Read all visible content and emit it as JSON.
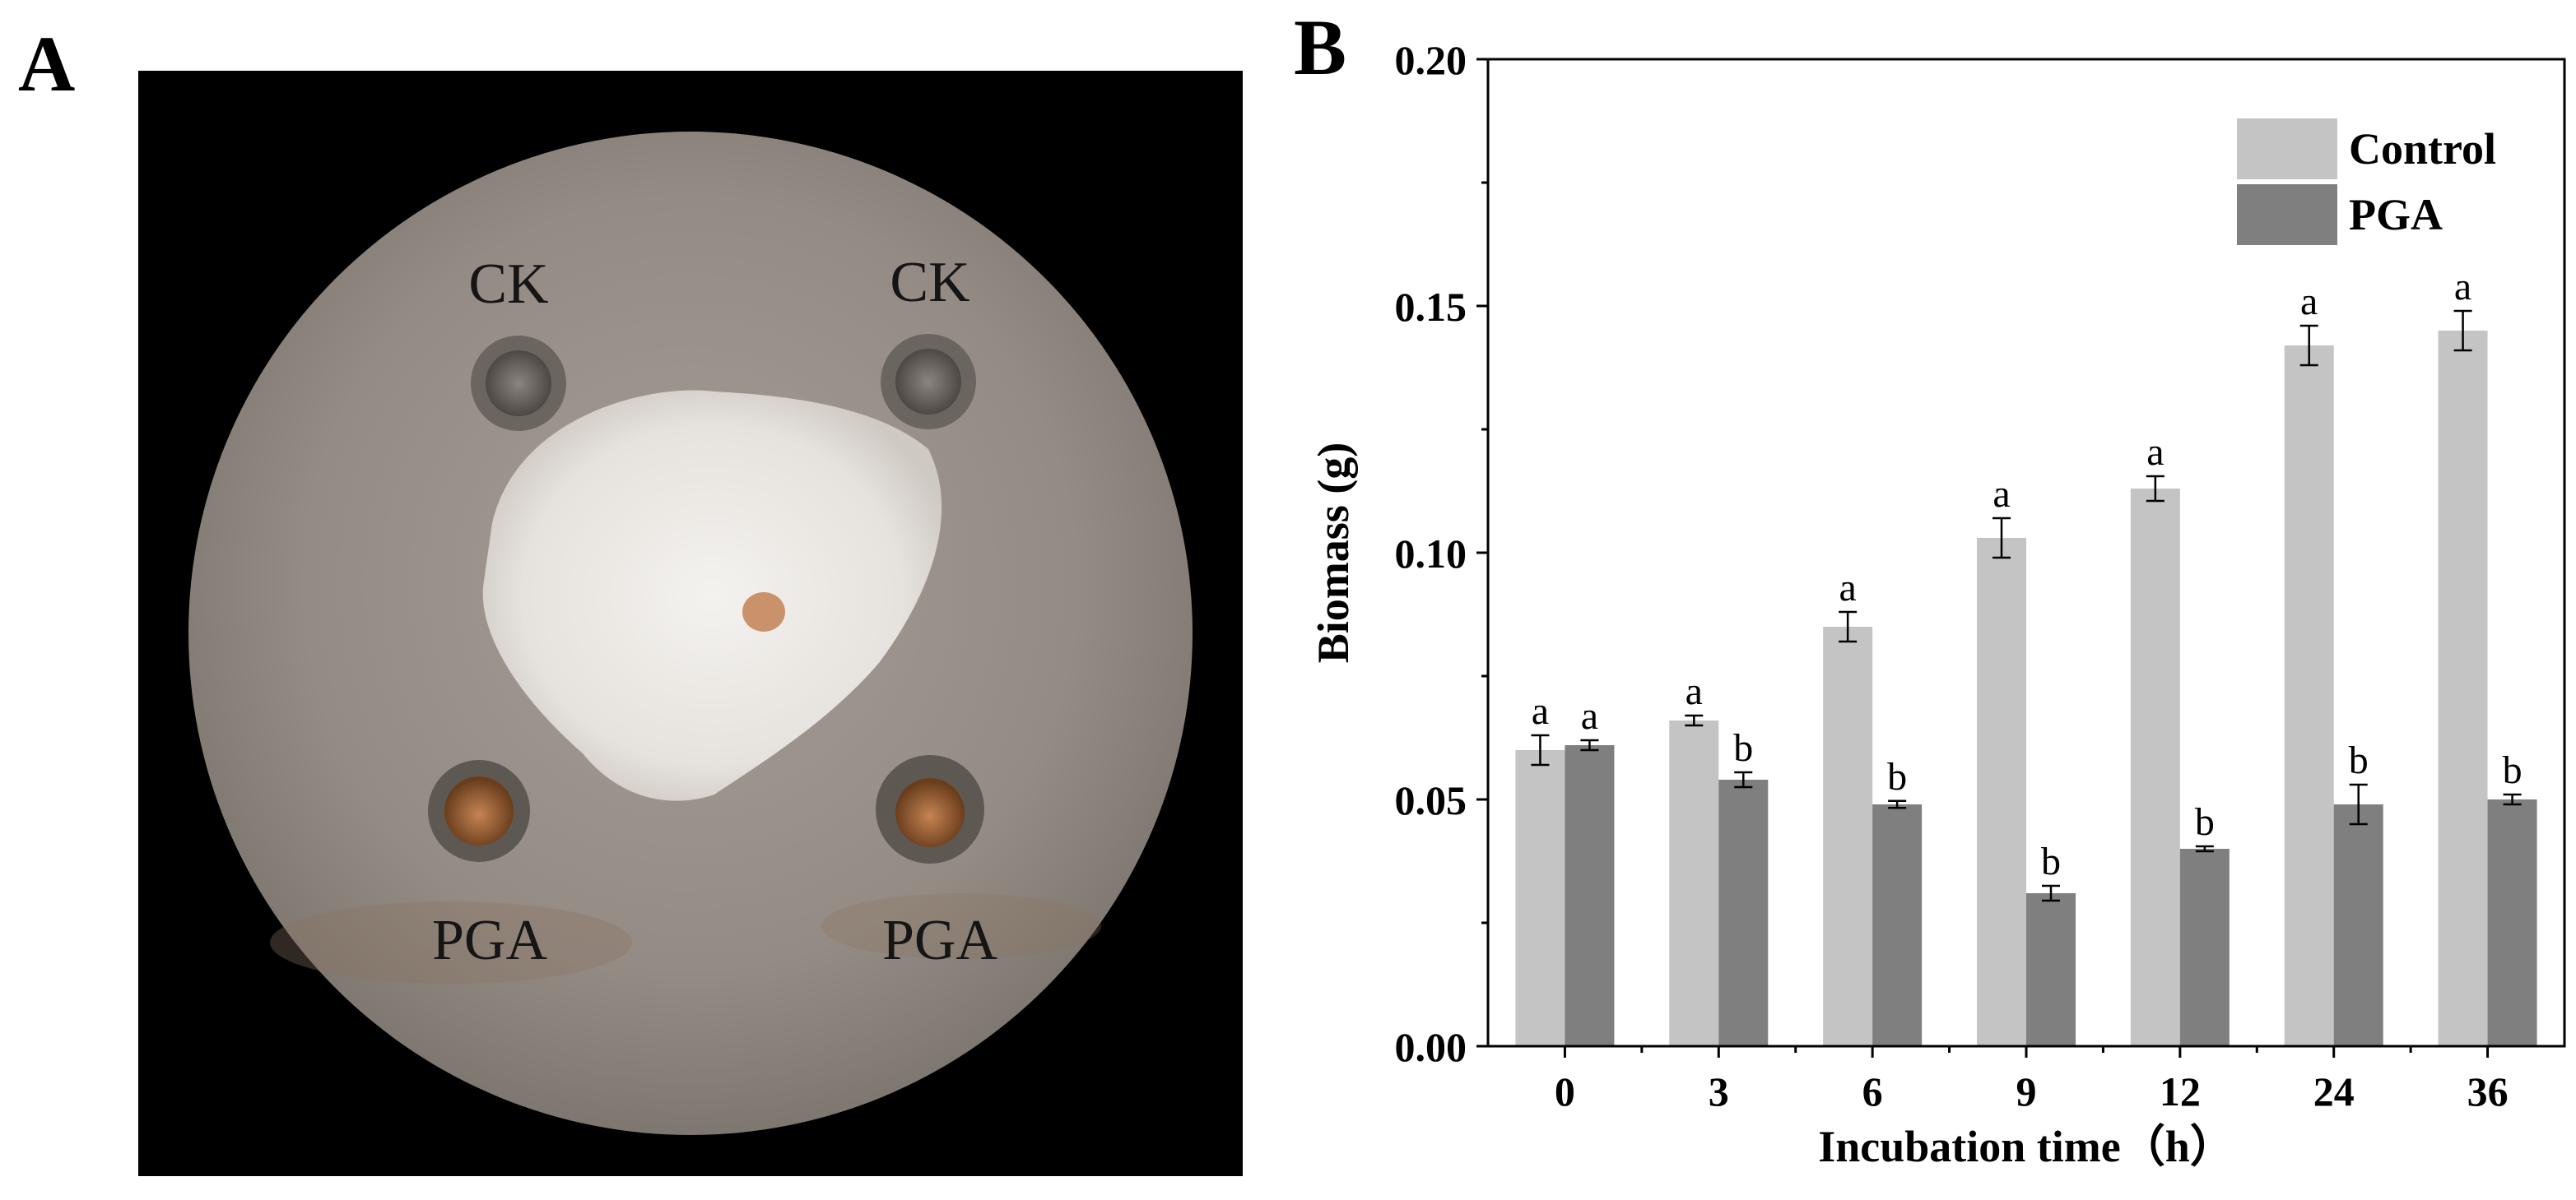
{
  "panel_a": {
    "letter": "A",
    "well_labels": [
      "CK",
      "CK",
      "PGA",
      "PGA"
    ]
  },
  "panel_b": {
    "letter": "B"
  },
  "chart_data": {
    "type": "bar",
    "categories": [
      "0",
      "3",
      "6",
      "9",
      "12",
      "24",
      "36"
    ],
    "series": [
      {
        "name": "Control",
        "color": "#c4c4c4",
        "values": [
          0.06,
          0.066,
          0.085,
          0.103,
          0.113,
          0.142,
          0.145
        ],
        "errors": [
          0.003,
          0.001,
          0.003,
          0.004,
          0.0025,
          0.004,
          0.004
        ],
        "letters": [
          "a",
          "a",
          "a",
          "a",
          "a",
          "a",
          "a"
        ]
      },
      {
        "name": "PGA",
        "color": "#7f7f7f",
        "values": [
          0.061,
          0.054,
          0.049,
          0.031,
          0.04,
          0.049,
          0.05
        ],
        "errors": [
          0.001,
          0.0015,
          0.0007,
          0.0015,
          0.0005,
          0.004,
          0.001
        ],
        "letters": [
          "a",
          "b",
          "b",
          "b",
          "b",
          "b",
          "b"
        ]
      }
    ],
    "xlabel": "Incubation time（h）",
    "ylabel": "Biomass (g)",
    "ylim": [
      0,
      0.2
    ],
    "yticks": [
      "0.00",
      "0.05",
      "0.10",
      "0.15",
      "0.20"
    ],
    "legend": "top-right",
    "grid": false
  }
}
